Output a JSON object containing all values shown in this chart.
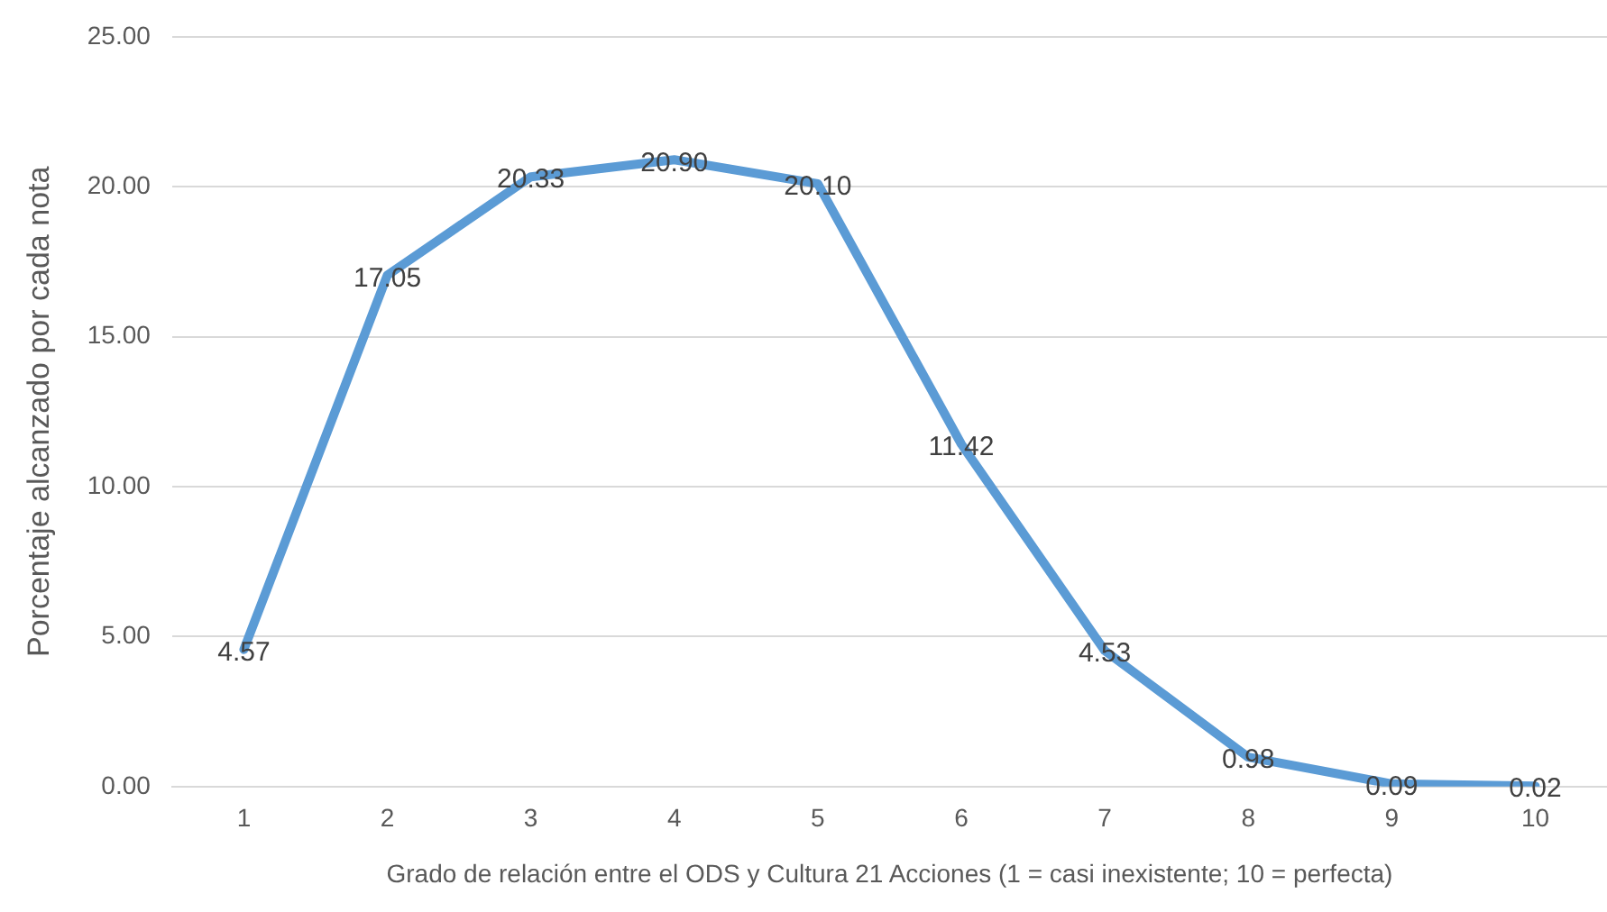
{
  "chart_data": {
    "type": "line",
    "xlabel": "Grado de relación entre el ODS y Cultura 21 Acciones (1 = casi inexistente; 10 = perfecta)",
    "ylabel": "Porcentaje alcanzado por cada nota",
    "categories": [
      "1",
      "2",
      "3",
      "4",
      "5",
      "6",
      "7",
      "8",
      "9",
      "10"
    ],
    "series": [
      {
        "color": "#5b9bd5",
        "values": [
          4.57,
          17.05,
          20.33,
          20.9,
          20.1,
          11.42,
          4.53,
          0.98,
          0.09,
          0.02
        ],
        "value_labels": [
          "4.57",
          "17.05",
          "20.33",
          "20.90",
          "20.10",
          "11.42",
          "4.53",
          "0.98",
          "0.09",
          "0.02"
        ]
      }
    ],
    "ylim": [
      0,
      25
    ],
    "yticks": [
      {
        "value": 0,
        "label": "0.00"
      },
      {
        "value": 5,
        "label": "5.00"
      },
      {
        "value": 10,
        "label": "10.00"
      },
      {
        "value": 15,
        "label": "15.00"
      },
      {
        "value": 20,
        "label": "20.00"
      },
      {
        "value": 25,
        "label": "25.00"
      }
    ],
    "grid": "y",
    "legend": false,
    "marker": "none",
    "line_style": "solid"
  }
}
